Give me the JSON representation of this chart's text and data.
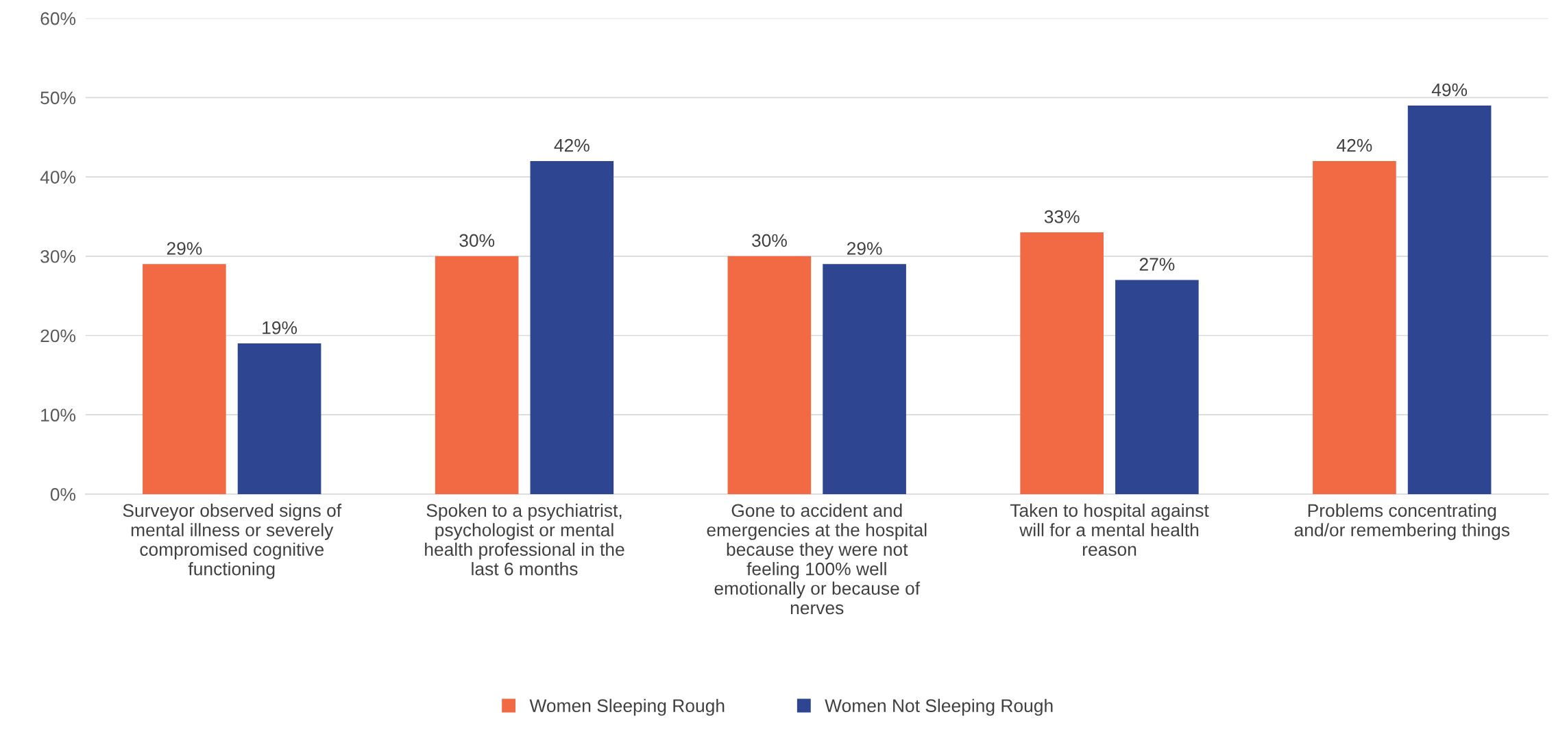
{
  "chart_data": {
    "type": "bar",
    "categories": [
      "Surveyor observed signs of\nmental illness or severely\ncompromised cognitive\nfunctioning",
      "Spoken to a psychiatrist,\npsychologist or mental\nhealth professional in the\nlast 6 months",
      "Gone to accident and\nemergencies at the hospital\nbecause they were not\nfeeling 100% well\nemotionally or because of\nnerves",
      "Taken to hospital against\nwill for a mental health\nreason",
      "Problems concentrating\nand/or remembering things"
    ],
    "series": [
      {
        "name": "Women Sleeping Rough",
        "color": "#f26a44",
        "values": [
          29,
          30,
          30,
          33,
          42
        ],
        "value_labels": [
          "29%",
          "30%",
          "30%",
          "33%",
          "42%"
        ]
      },
      {
        "name": "Women Not Sleeping Rough",
        "color": "#2e4591",
        "values": [
          19,
          42,
          29,
          27,
          49
        ],
        "value_labels": [
          "19%",
          "42%",
          "29%",
          "27%",
          "49%"
        ]
      }
    ],
    "ylim": [
      0,
      60
    ],
    "yticks": [
      {
        "value": 0,
        "label": "0%"
      },
      {
        "value": 10,
        "label": "10%"
      },
      {
        "value": 20,
        "label": "20%"
      },
      {
        "value": 30,
        "label": "30%"
      },
      {
        "value": 40,
        "label": "40%"
      },
      {
        "value": 50,
        "label": "50%"
      },
      {
        "value": 60,
        "label": "60%"
      }
    ],
    "grid": "y",
    "legend": "bottom"
  }
}
